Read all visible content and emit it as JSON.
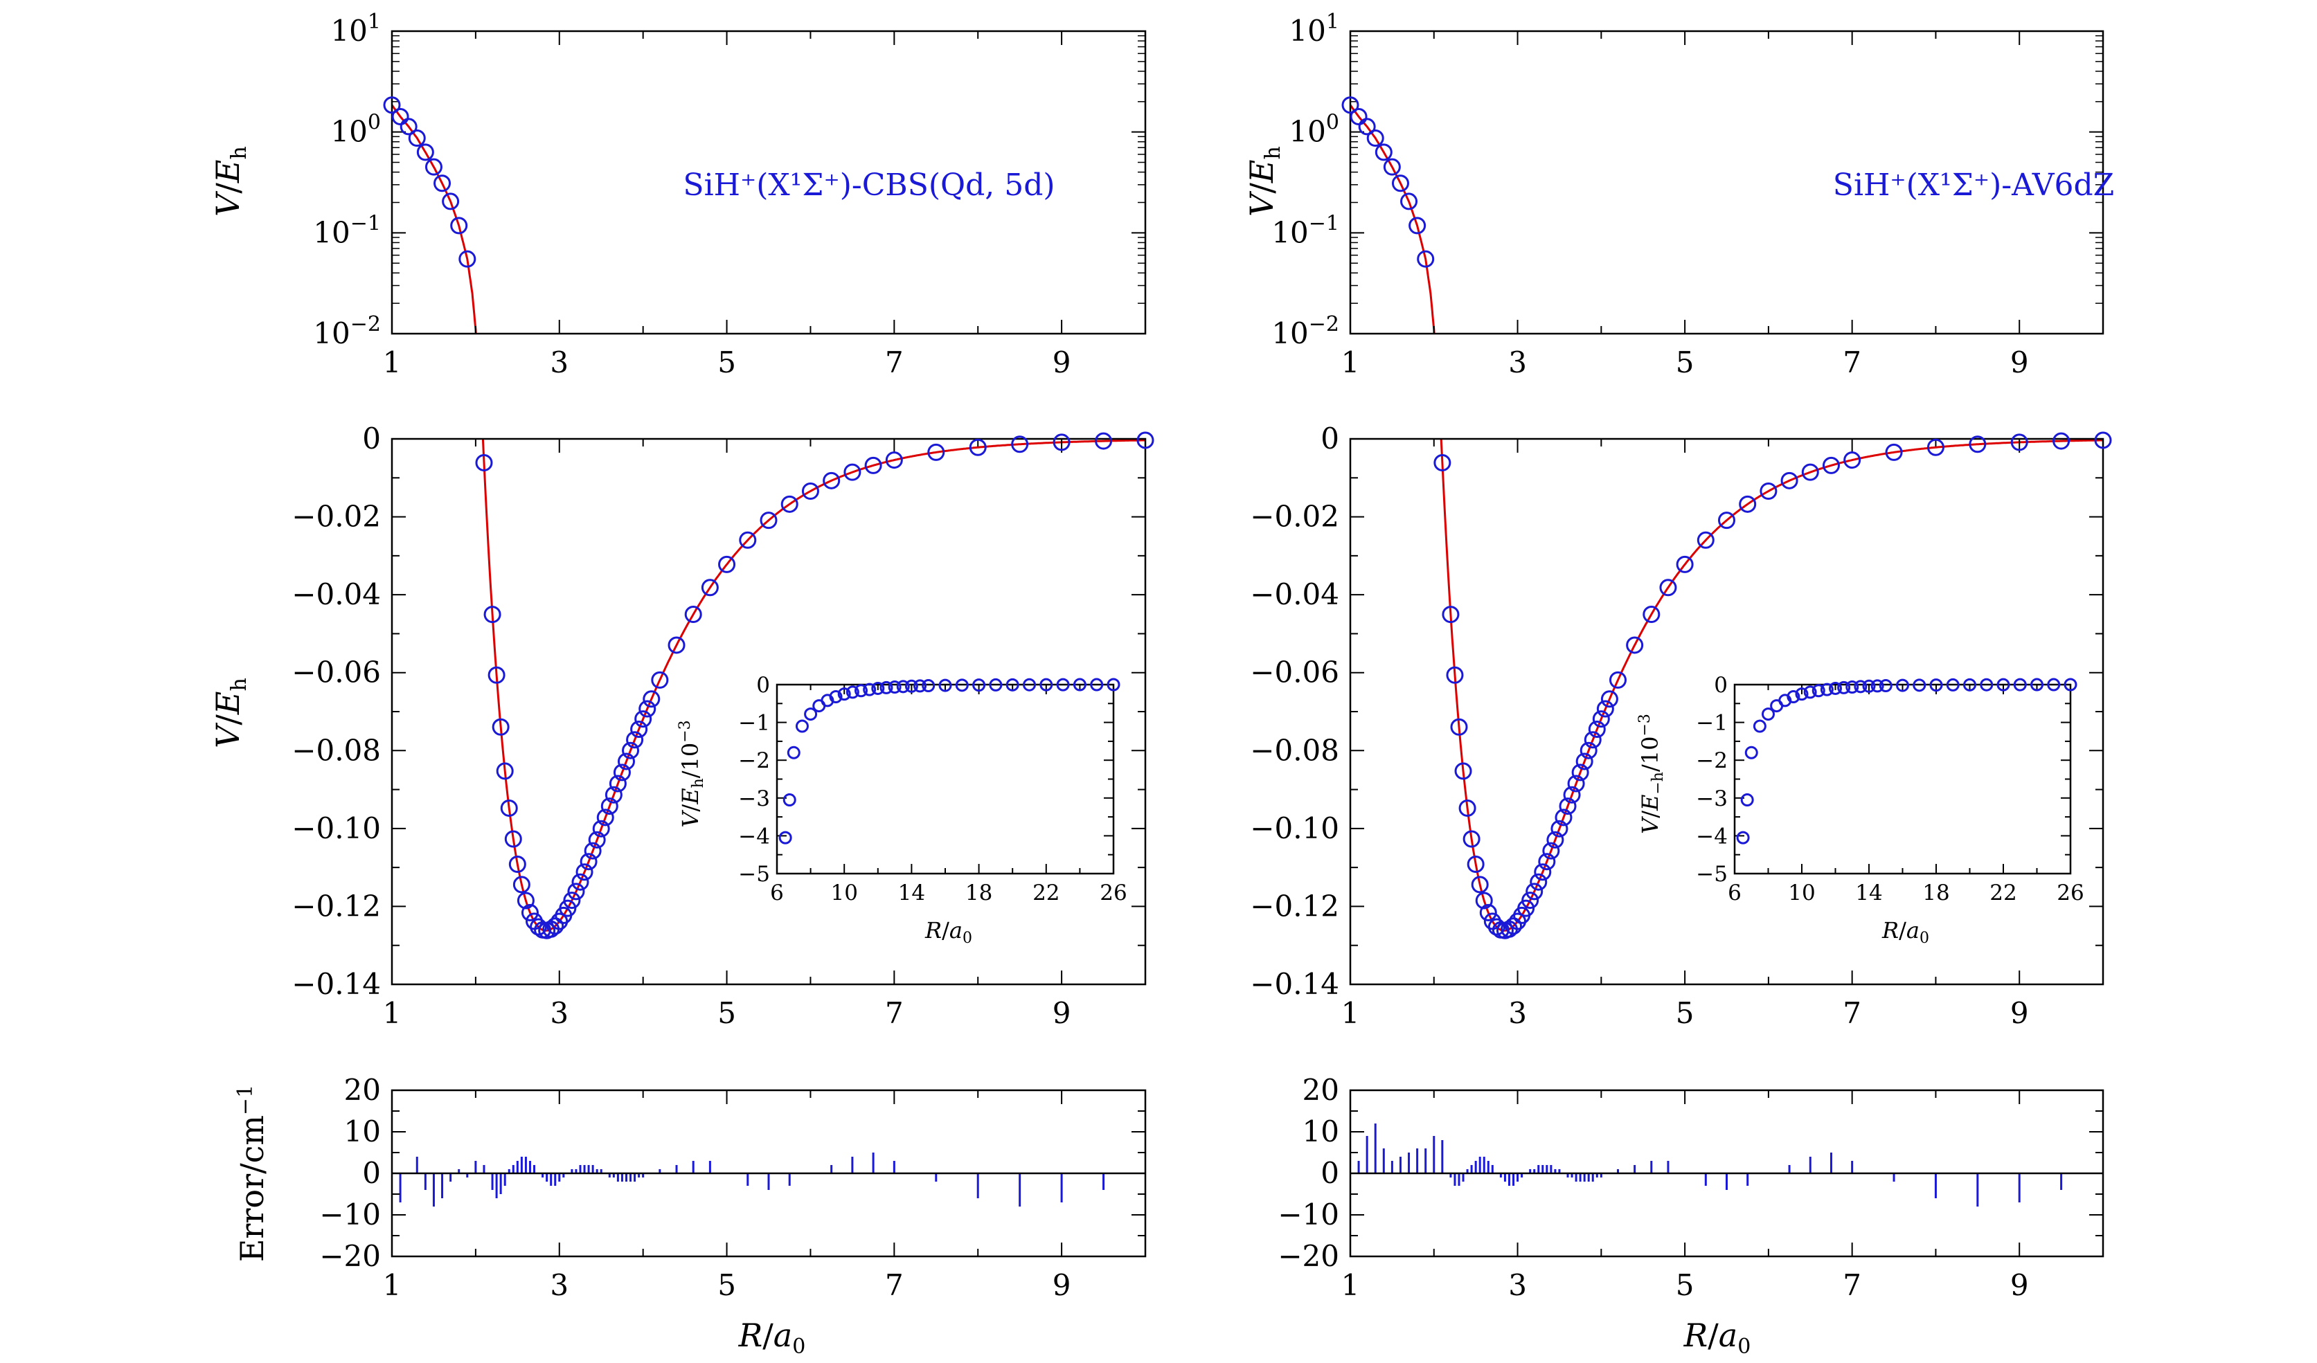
{
  "colors": {
    "fit": "#dd0000",
    "points": "#1a1ad6",
    "axis": "#000000",
    "annotation": "#1a1ad6"
  },
  "labels": {
    "v_eh": "V/E_h",
    "v_eh_inset_left": "V/E_h/10^-3",
    "v_eh_inset_right": "V/E_-h/10^-3",
    "r_a0": "R/a_0",
    "error": "Error/cm^-1"
  },
  "chart_data": [
    {
      "id": "left-top",
      "type": "scatter",
      "yscale": "log",
      "annotation": "SiH⁺(X¹Σ⁺)-CBS(Qd, 5d)",
      "xlim": [
        1,
        10
      ],
      "xticks": [
        1,
        3,
        5,
        7,
        9
      ],
      "ylim": [
        0.01,
        10
      ],
      "yticks": [
        "10^1",
        "10^0",
        "10^-1",
        "10^-2"
      ],
      "ylabel": "V/E_h",
      "series": [
        {
          "x": [
            1.0,
            1.1,
            1.2,
            1.3,
            1.4,
            1.5,
            1.6,
            1.7,
            1.8,
            1.9
          ],
          "y": [
            1.85,
            1.42,
            1.13,
            0.87,
            0.63,
            0.45,
            0.31,
            0.205,
            0.118,
            0.055
          ]
        }
      ]
    },
    {
      "id": "right-top",
      "type": "scatter",
      "yscale": "log",
      "annotation": "SiH⁺(X¹Σ⁺)-AV6dZ",
      "xlim": [
        1,
        10
      ],
      "xticks": [
        1,
        3,
        5,
        7,
        9
      ],
      "ylim": [
        0.01,
        10
      ],
      "yticks": [
        "10^1",
        "10^0",
        "10^-1",
        "10^-2"
      ],
      "ylabel": "V/E_h",
      "series": [
        {
          "x": [
            1.0,
            1.1,
            1.2,
            1.3,
            1.4,
            1.5,
            1.6,
            1.7,
            1.8,
            1.9
          ],
          "y": [
            1.85,
            1.42,
            1.13,
            0.87,
            0.63,
            0.45,
            0.31,
            0.205,
            0.118,
            0.055
          ]
        }
      ]
    },
    {
      "id": "left-main",
      "type": "scatter",
      "xlim": [
        1,
        10
      ],
      "xticks": [
        1,
        3,
        5,
        7,
        9
      ],
      "ylim": [
        -0.14,
        0
      ],
      "yticks": [
        "0",
        "−0.02",
        "−0.04",
        "−0.06",
        "−0.08",
        "−0.10",
        "−0.12",
        "−0.14"
      ],
      "ylabel": "V/E_h",
      "model": {
        "De": 0.1262,
        "Re": 2.84,
        "a": 0.92
      },
      "x_points": [
        2.1,
        2.2,
        2.25,
        2.3,
        2.35,
        2.4,
        2.45,
        2.5,
        2.55,
        2.6,
        2.65,
        2.7,
        2.75,
        2.8,
        2.85,
        2.9,
        2.95,
        3.0,
        3.05,
        3.1,
        3.15,
        3.2,
        3.25,
        3.3,
        3.35,
        3.4,
        3.45,
        3.5,
        3.55,
        3.6,
        3.65,
        3.7,
        3.75,
        3.8,
        3.85,
        3.9,
        3.95,
        4.0,
        4.05,
        4.1,
        4.2,
        4.4,
        4.6,
        4.8,
        5.0,
        5.25,
        5.5,
        5.75,
        6.0,
        6.25,
        6.5,
        6.75,
        7.0,
        7.5,
        8.0,
        8.5,
        9.0,
        9.5,
        10.0
      ]
    },
    {
      "id": "right-main",
      "type": "scatter",
      "xlim": [
        1,
        10
      ],
      "xticks": [
        1,
        3,
        5,
        7,
        9
      ],
      "ylim": [
        -0.14,
        0
      ],
      "yticks": [
        "0",
        "−0.02",
        "−0.04",
        "−0.06",
        "−0.08",
        "−0.10",
        "−0.12",
        "−0.14"
      ],
      "ylabel": "V/E_h",
      "model": {
        "De": 0.1262,
        "Re": 2.84,
        "a": 0.92
      },
      "x_points": [
        2.1,
        2.2,
        2.25,
        2.3,
        2.35,
        2.4,
        2.45,
        2.5,
        2.55,
        2.6,
        2.65,
        2.7,
        2.75,
        2.8,
        2.85,
        2.9,
        2.95,
        3.0,
        3.05,
        3.1,
        3.15,
        3.2,
        3.25,
        3.3,
        3.35,
        3.4,
        3.45,
        3.5,
        3.55,
        3.6,
        3.65,
        3.7,
        3.75,
        3.8,
        3.85,
        3.9,
        3.95,
        4.0,
        4.05,
        4.1,
        4.2,
        4.4,
        4.6,
        4.8,
        5.0,
        5.25,
        5.5,
        5.75,
        6.0,
        6.25,
        6.5,
        6.75,
        7.0,
        7.5,
        8.0,
        8.5,
        9.0,
        9.5,
        10.0
      ]
    },
    {
      "id": "left-inset",
      "type": "scatter",
      "xlim": [
        6,
        26
      ],
      "xticks": [
        6,
        10,
        14,
        18,
        22,
        26
      ],
      "ylim": [
        -5,
        0
      ],
      "yticks": [
        "0",
        "−1",
        "−2",
        "−3",
        "−4",
        "−5"
      ],
      "xlabel": "R/a_0",
      "ylabel": "V/E_h/10^-3",
      "series": [
        {
          "x": [
            6.5,
            6.75,
            7.0,
            7.5,
            8.0,
            8.5,
            9.0,
            9.5,
            10.0,
            10.5,
            11.0,
            11.5,
            12.0,
            12.5,
            13.0,
            13.5,
            14.0,
            14.5,
            15.0,
            16.0,
            17.0,
            18.0,
            19.0,
            20.0,
            21.0,
            22.0,
            23.0,
            24.0,
            25.0,
            26.0
          ],
          "y": [
            -4.05,
            -3.05,
            -1.8,
            -1.1,
            -0.78,
            -0.56,
            -0.42,
            -0.32,
            -0.25,
            -0.2,
            -0.16,
            -0.13,
            -0.1,
            -0.08,
            -0.065,
            -0.052,
            -0.042,
            -0.034,
            -0.028,
            -0.02,
            -0.015,
            -0.011,
            -0.008,
            -0.006,
            -0.004,
            -0.003,
            -0.002,
            -0.001,
            -0.001,
            0.0
          ]
        }
      ]
    },
    {
      "id": "right-inset",
      "type": "scatter",
      "xlim": [
        6,
        26
      ],
      "xticks": [
        6,
        10,
        14,
        18,
        22,
        26
      ],
      "ylim": [
        -5,
        0
      ],
      "yticks": [
        "0",
        "−1",
        "−2",
        "−3",
        "−4",
        "−5"
      ],
      "xlabel": "R/a_0",
      "ylabel": "V/E_-h/10^-3",
      "series": [
        {
          "x": [
            6.5,
            6.75,
            7.0,
            7.5,
            8.0,
            8.5,
            9.0,
            9.5,
            10.0,
            10.5,
            11.0,
            11.5,
            12.0,
            12.5,
            13.0,
            13.5,
            14.0,
            14.5,
            15.0,
            16.0,
            17.0,
            18.0,
            19.0,
            20.0,
            21.0,
            22.0,
            23.0,
            24.0,
            25.0,
            26.0
          ],
          "y": [
            -4.05,
            -3.05,
            -1.8,
            -1.1,
            -0.78,
            -0.56,
            -0.42,
            -0.32,
            -0.25,
            -0.2,
            -0.16,
            -0.13,
            -0.1,
            -0.08,
            -0.065,
            -0.052,
            -0.042,
            -0.034,
            -0.028,
            -0.02,
            -0.015,
            -0.011,
            -0.008,
            -0.006,
            -0.004,
            -0.003,
            -0.002,
            -0.001,
            -0.001,
            0.0
          ]
        }
      ]
    },
    {
      "id": "left-error",
      "type": "bar",
      "xlim": [
        1,
        10
      ],
      "xticks": [
        1,
        3,
        5,
        7,
        9
      ],
      "ylim": [
        -20,
        20
      ],
      "yticks": [
        "20",
        "10",
        "0",
        "−10",
        "−20"
      ],
      "xlabel": "R/a_0",
      "ylabel": "Error/cm^-1",
      "series": [
        {
          "x": [
            1.1,
            1.3,
            1.4,
            1.5,
            1.6,
            1.7,
            1.8,
            1.9,
            2.0,
            2.1,
            2.2,
            2.25,
            2.3,
            2.35,
            2.4,
            2.45,
            2.5,
            2.55,
            2.6,
            2.65,
            2.7,
            2.75,
            2.8,
            2.85,
            2.9,
            2.95,
            3.0,
            3.05,
            3.1,
            3.15,
            3.2,
            3.25,
            3.3,
            3.35,
            3.4,
            3.45,
            3.5,
            3.55,
            3.6,
            3.65,
            3.7,
            3.75,
            3.8,
            3.85,
            3.9,
            3.95,
            4.0,
            4.05,
            4.1,
            4.2,
            4.4,
            4.6,
            4.8,
            5.25,
            5.5,
            5.75,
            6.25,
            6.5,
            6.75,
            7.0,
            7.5,
            8.0,
            8.5,
            9.0,
            9.5
          ],
          "y": [
            -7,
            4,
            -4,
            -8,
            -6,
            -2,
            1,
            -1,
            3,
            2,
            -4,
            -6,
            -5,
            -3,
            1,
            2,
            3,
            4,
            4,
            3,
            2,
            0,
            -1,
            -2,
            -3,
            -3,
            -2,
            -1,
            0,
            1,
            1,
            2,
            2,
            2,
            2,
            1,
            1,
            0,
            -1,
            -1,
            -2,
            -2,
            -2,
            -2,
            -2,
            -1,
            -1,
            0,
            0,
            1,
            2,
            3,
            3,
            -3,
            -4,
            -3,
            2,
            4,
            5,
            3,
            -2,
            -6,
            -8,
            -7,
            -4
          ]
        }
      ]
    },
    {
      "id": "right-error",
      "type": "bar",
      "xlim": [
        1,
        10
      ],
      "xticks": [
        1,
        3,
        5,
        7,
        9
      ],
      "ylim": [
        -20,
        20
      ],
      "yticks": [
        "20",
        "10",
        "0",
        "−10",
        "−20"
      ],
      "xlabel": "R/a_0",
      "ylabel": "Error/cm^-1",
      "series": [
        {
          "x": [
            1.1,
            1.2,
            1.3,
            1.4,
            1.5,
            1.6,
            1.7,
            1.8,
            1.9,
            2.0,
            2.1,
            2.2,
            2.25,
            2.3,
            2.35,
            2.4,
            2.45,
            2.5,
            2.55,
            2.6,
            2.65,
            2.7,
            2.75,
            2.8,
            2.85,
            2.9,
            2.95,
            3.0,
            3.05,
            3.1,
            3.15,
            3.2,
            3.25,
            3.3,
            3.35,
            3.4,
            3.45,
            3.5,
            3.55,
            3.6,
            3.65,
            3.7,
            3.75,
            3.8,
            3.85,
            3.9,
            3.95,
            4.0,
            4.05,
            4.1,
            4.2,
            4.4,
            4.6,
            4.8,
            5.25,
            5.5,
            5.75,
            6.25,
            6.5,
            6.75,
            7.0,
            7.5,
            8.0,
            8.5,
            9.0,
            9.5
          ],
          "y": [
            3,
            9,
            12,
            6,
            3,
            4,
            5,
            6,
            6,
            9,
            8,
            -1,
            -3,
            -3,
            -2,
            1,
            2,
            3,
            4,
            4,
            3,
            2,
            0,
            -1,
            -2,
            -3,
            -3,
            -2,
            -1,
            0,
            1,
            1,
            2,
            2,
            2,
            2,
            1,
            1,
            0,
            -1,
            -1,
            -2,
            -2,
            -2,
            -2,
            -2,
            -1,
            -1,
            0,
            0,
            1,
            2,
            3,
            3,
            -3,
            -4,
            -3,
            2,
            4,
            5,
            3,
            -2,
            -6,
            -8,
            -7,
            -4
          ]
        }
      ]
    }
  ]
}
